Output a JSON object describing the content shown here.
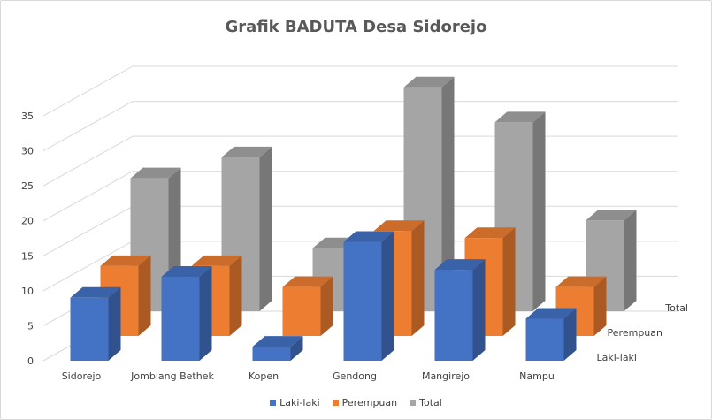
{
  "chart_data": {
    "type": "bar3d",
    "title": "Grafik BADUTA Desa Sidorejo",
    "xlabel": "",
    "ylabel": "",
    "categories": [
      "Sidorejo",
      "Jomblang Bethek",
      "Kopen",
      "Gendong",
      "Mangirejo",
      "Nampu"
    ],
    "series": [
      {
        "name": "Laki-laki",
        "values": [
          9,
          12,
          2,
          17,
          13,
          6
        ],
        "color": "#4472c4"
      },
      {
        "name": "Perempuan",
        "values": [
          10,
          10,
          7,
          15,
          14,
          7
        ],
        "color": "#ed7d31"
      },
      {
        "name": "Total",
        "values": [
          19,
          22,
          9,
          32,
          27,
          13
        ],
        "color": "#a5a5a5"
      }
    ],
    "depth_labels": [
      "Laki-laki",
      "Perempuan",
      "Total"
    ],
    "yticks": [
      "0",
      "5",
      "10",
      "15",
      "20",
      "25",
      "30",
      "35"
    ],
    "ylim": [
      0,
      35
    ],
    "grid": true,
    "legend": "bottom"
  }
}
